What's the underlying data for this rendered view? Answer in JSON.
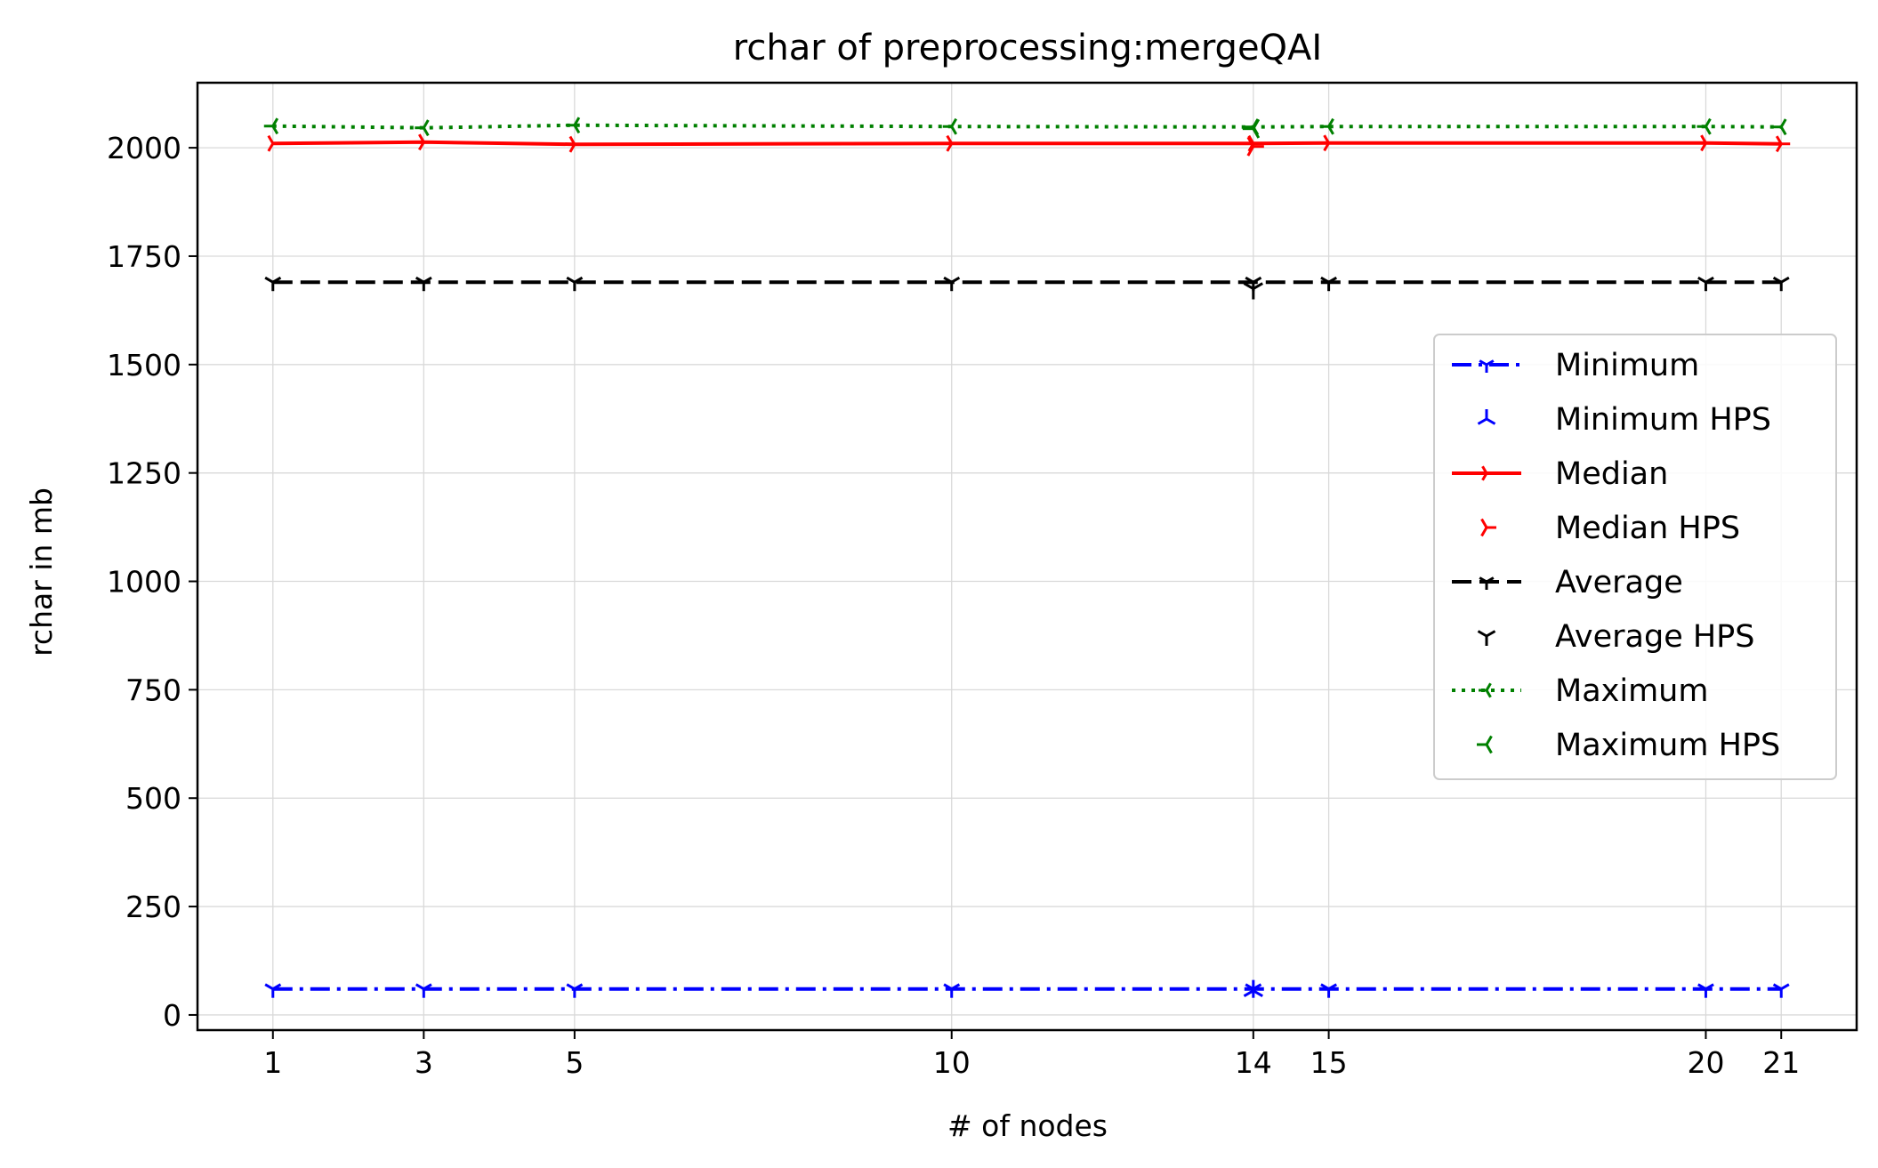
{
  "chart_data": {
    "type": "line",
    "title": "rchar of preprocessing:mergeQAI",
    "xlabel": "# of nodes",
    "ylabel": "rchar in mb",
    "x": [
      1,
      3,
      5,
      10,
      14,
      15,
      20,
      21
    ],
    "xticks": [
      1,
      3,
      5,
      10,
      14,
      15,
      20,
      21
    ],
    "xtick_labels": [
      "1",
      "3",
      "5",
      "10",
      "14",
      "15",
      "20",
      "21"
    ],
    "xlim": [
      0,
      22
    ],
    "ylim": [
      -35,
      2150
    ],
    "yticks": [
      0,
      250,
      500,
      750,
      1000,
      1250,
      1500,
      1750,
      2000
    ],
    "ytick_labels": [
      "0",
      "250",
      "500",
      "750",
      "1000",
      "1250",
      "1500",
      "1750",
      "2000"
    ],
    "grid": true,
    "legend_position": "center-right",
    "series": [
      {
        "name": "Minimum",
        "kind": "line",
        "color": "#0000ff",
        "dash": "dashdot",
        "marker": "tri_down",
        "values": [
          60,
          60,
          60,
          60,
          60,
          60,
          60,
          60
        ]
      },
      {
        "name": "Minimum HPS",
        "kind": "scatter",
        "color": "#0000ff",
        "marker": "tri_up",
        "x": [
          14
        ],
        "values": [
          56
        ]
      },
      {
        "name": "Median",
        "kind": "line",
        "color": "#ff0000",
        "dash": "solid",
        "marker": "tri_right",
        "values": [
          2010,
          2013,
          2008,
          2010,
          2010,
          2011,
          2011,
          2009
        ]
      },
      {
        "name": "Median HPS",
        "kind": "scatter",
        "color": "#ff0000",
        "marker": "tri_right",
        "x": [
          14
        ],
        "values": [
          2003
        ]
      },
      {
        "name": "Average",
        "kind": "line",
        "color": "#000000",
        "dash": "dashed",
        "marker": "tri_down",
        "values": [
          1690,
          1690,
          1690,
          1690,
          1690,
          1690,
          1690,
          1690
        ]
      },
      {
        "name": "Average HPS",
        "kind": "scatter",
        "color": "#000000",
        "marker": "tri_down",
        "x": [
          14
        ],
        "values": [
          1675
        ]
      },
      {
        "name": "Maximum",
        "kind": "line",
        "color": "#008000",
        "dash": "dotted",
        "marker": "tri_left",
        "values": [
          2050,
          2046,
          2052,
          2049,
          2048,
          2049,
          2049,
          2048
        ]
      },
      {
        "name": "Maximum HPS",
        "kind": "scatter",
        "color": "#008000",
        "marker": "tri_left",
        "x": [
          14
        ],
        "values": [
          2044
        ]
      }
    ]
  }
}
